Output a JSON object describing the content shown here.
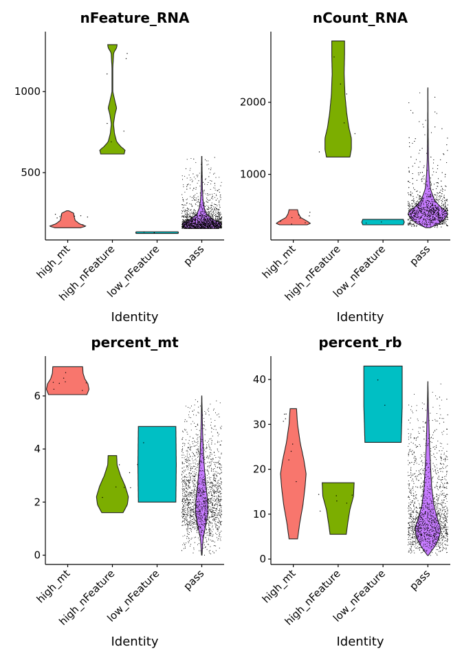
{
  "chart_data": [
    {
      "type": "violin",
      "title": "nFeature_RNA",
      "xlabel": "Identity",
      "ylabel": "",
      "categories": [
        "high_mt",
        "high_nFeature",
        "low_nFeature",
        "pass"
      ],
      "ylim": [
        85,
        1370
      ],
      "yticks": [
        500,
        1000
      ],
      "colors": [
        "#F8766D",
        "#7CAE00",
        "#00BFC4",
        "#C77CFF"
      ],
      "series": [
        {
          "min": 160,
          "max": 265,
          "density": [
            [
              160,
              0.6
            ],
            [
              170,
              0.85
            ],
            [
              185,
              0.55
            ],
            [
              205,
              0.35
            ],
            [
              230,
              0.3
            ],
            [
              250,
              0.28
            ],
            [
              265,
              0.05
            ]
          ],
          "points": 8
        },
        {
          "min": 615,
          "max": 1290,
          "density": [
            [
              615,
              0.55
            ],
            [
              640,
              0.6
            ],
            [
              660,
              0.4
            ],
            [
              690,
              0.2
            ],
            [
              740,
              0.1
            ],
            [
              800,
              0.05
            ],
            [
              860,
              0.12
            ],
            [
              900,
              0.2
            ],
            [
              940,
              0.12
            ],
            [
              1000,
              0.02
            ],
            [
              1150,
              0.02
            ],
            [
              1240,
              0.06
            ],
            [
              1270,
              0.2
            ],
            [
              1290,
              0.22
            ]
          ],
          "points": 6
        },
        {
          "min": 125,
          "max": 135,
          "density": [
            [
              125,
              0.98
            ],
            [
              130,
              1.0
            ],
            [
              135,
              0.98
            ]
          ],
          "points": 2
        },
        {
          "min": 155,
          "max": 600,
          "density": [
            [
              155,
              0.8
            ],
            [
              175,
              0.92
            ],
            [
              190,
              0.9
            ],
            [
              210,
              0.55
            ],
            [
              240,
              0.25
            ],
            [
              280,
              0.12
            ],
            [
              330,
              0.06
            ],
            [
              400,
              0.03
            ],
            [
              500,
              0.015
            ],
            [
              600,
              0.005
            ]
          ],
          "points": 1800
        }
      ]
    },
    {
      "type": "violin",
      "title": "nCount_RNA",
      "xlabel": "Identity",
      "ylabel": "",
      "categories": [
        "high_mt",
        "high_nFeature",
        "low_nFeature",
        "pass"
      ],
      "ylim": [
        90,
        2980
      ],
      "yticks": [
        1000,
        2000
      ],
      "colors": [
        "#F8766D",
        "#7CAE00",
        "#00BFC4",
        "#C77CFF"
      ],
      "series": [
        {
          "min": 300,
          "max": 510,
          "density": [
            [
              300,
              0.65
            ],
            [
              320,
              0.8
            ],
            [
              350,
              0.65
            ],
            [
              400,
              0.35
            ],
            [
              450,
              0.25
            ],
            [
              480,
              0.22
            ],
            [
              510,
              0.2
            ]
          ],
          "points": 8
        },
        {
          "min": 1240,
          "max": 2850,
          "density": [
            [
              1240,
              0.55
            ],
            [
              1350,
              0.62
            ],
            [
              1500,
              0.62
            ],
            [
              1650,
              0.5
            ],
            [
              1850,
              0.4
            ],
            [
              2100,
              0.32
            ],
            [
              2400,
              0.28
            ],
            [
              2650,
              0.3
            ],
            [
              2850,
              0.3
            ]
          ],
          "points": 6
        },
        {
          "min": 300,
          "max": 375,
          "density": [
            [
              300,
              0.95
            ],
            [
              337,
              1.0
            ],
            [
              375,
              0.95
            ]
          ],
          "points": 2
        },
        {
          "min": 260,
          "max": 2200,
          "density": [
            [
              260,
              0.1
            ],
            [
              320,
              0.55
            ],
            [
              400,
              0.85
            ],
            [
              470,
              0.95
            ],
            [
              560,
              0.55
            ],
            [
              650,
              0.3
            ],
            [
              800,
              0.12
            ],
            [
              1000,
              0.06
            ],
            [
              1200,
              0.03
            ],
            [
              1500,
              0.015
            ],
            [
              1800,
              0.008
            ],
            [
              2200,
              0.004
            ]
          ],
          "points": 1800
        }
      ]
    },
    {
      "type": "violin",
      "title": "percent_mt",
      "xlabel": "Identity",
      "ylabel": "",
      "categories": [
        "high_mt",
        "high_nFeature",
        "low_nFeature",
        "pass"
      ],
      "ylim": [
        -0.35,
        7.5
      ],
      "yticks": [
        0,
        2,
        4,
        6
      ],
      "colors": [
        "#F8766D",
        "#7CAE00",
        "#00BFC4",
        "#C77CFF"
      ],
      "series": [
        {
          "min": 6.05,
          "max": 7.1,
          "density": [
            [
              6.05,
              0.9
            ],
            [
              6.25,
              1.0
            ],
            [
              6.45,
              0.95
            ],
            [
              6.65,
              0.8
            ],
            [
              6.85,
              0.72
            ],
            [
              7.1,
              0.7
            ]
          ],
          "points": 8
        },
        {
          "min": 1.6,
          "max": 3.75,
          "density": [
            [
              1.6,
              0.5
            ],
            [
              1.9,
              0.7
            ],
            [
              2.2,
              0.75
            ],
            [
              2.6,
              0.6
            ],
            [
              3.0,
              0.38
            ],
            [
              3.4,
              0.22
            ],
            [
              3.75,
              0.2
            ]
          ],
          "points": 6
        },
        {
          "min": 2.0,
          "max": 4.85,
          "density": [
            [
              2.0,
              0.88
            ],
            [
              3.4,
              0.9
            ],
            [
              4.85,
              0.88
            ]
          ],
          "points": 2
        },
        {
          "min": 0.0,
          "max": 6.0,
          "density": [
            [
              0.0,
              0.01
            ],
            [
              0.6,
              0.06
            ],
            [
              1.1,
              0.18
            ],
            [
              1.6,
              0.3
            ],
            [
              2.0,
              0.28
            ],
            [
              2.6,
              0.2
            ],
            [
              3.2,
              0.13
            ],
            [
              3.8,
              0.08
            ],
            [
              4.4,
              0.05
            ],
            [
              5.0,
              0.03
            ],
            [
              5.5,
              0.015
            ],
            [
              6.0,
              0.003
            ]
          ],
          "points": 1800
        }
      ]
    },
    {
      "type": "violin",
      "title": "percent_rb",
      "xlabel": "Identity",
      "ylabel": "",
      "categories": [
        "high_mt",
        "high_nFeature",
        "low_nFeature",
        "pass"
      ],
      "ylim": [
        -1.2,
        45.2
      ],
      "yticks": [
        0,
        10,
        20,
        30,
        40
      ],
      "colors": [
        "#F8766D",
        "#7CAE00",
        "#00BFC4",
        "#C77CFF"
      ],
      "series": [
        {
          "min": 4.5,
          "max": 33.5,
          "density": [
            [
              4.5,
              0.2
            ],
            [
              8,
              0.3
            ],
            [
              12,
              0.45
            ],
            [
              16,
              0.55
            ],
            [
              19,
              0.6
            ],
            [
              22,
              0.5
            ],
            [
              26,
              0.32
            ],
            [
              30,
              0.2
            ],
            [
              33.5,
              0.15
            ]
          ],
          "points": 8
        },
        {
          "min": 5.5,
          "max": 17,
          "density": [
            [
              5.5,
              0.38
            ],
            [
              8,
              0.45
            ],
            [
              11,
              0.55
            ],
            [
              14,
              0.72
            ],
            [
              17,
              0.75
            ]
          ],
          "points": 6
        },
        {
          "min": 26,
          "max": 43,
          "density": [
            [
              26,
              0.85
            ],
            [
              34,
              0.9
            ],
            [
              43,
              0.9
            ]
          ],
          "points": 2
        },
        {
          "min": 0.8,
          "max": 39.5,
          "density": [
            [
              0.8,
              0.02
            ],
            [
              3,
              0.35
            ],
            [
              5,
              0.55
            ],
            [
              7,
              0.6
            ],
            [
              9,
              0.45
            ],
            [
              12,
              0.28
            ],
            [
              16,
              0.18
            ],
            [
              20,
              0.13
            ],
            [
              25,
              0.08
            ],
            [
              30,
              0.05
            ],
            [
              35,
              0.02
            ],
            [
              39.5,
              0.003
            ]
          ],
          "points": 1800
        }
      ]
    }
  ]
}
